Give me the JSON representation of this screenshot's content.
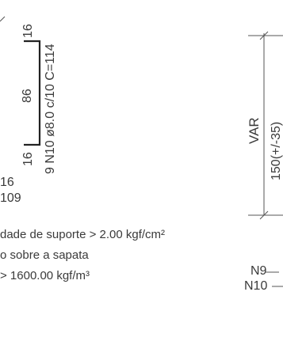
{
  "left_detail": {
    "segment_top": "16",
    "segment_middle": "86",
    "segment_bottom": "16",
    "bar_spec": "9 N10 ø8.0 c/10 C=114",
    "cut_label_a": "16",
    "cut_label_b": "109"
  },
  "notes": [
    "dade de suporte > 2.00 kgf/cm²",
    "o sobre a sapata",
    "> 1600.00 kgf/m³"
  ],
  "right_detail": {
    "var_label": "VAR",
    "dimension": "150(+/-35)",
    "callout_n9": "N9",
    "callout_n10": "N10"
  }
}
